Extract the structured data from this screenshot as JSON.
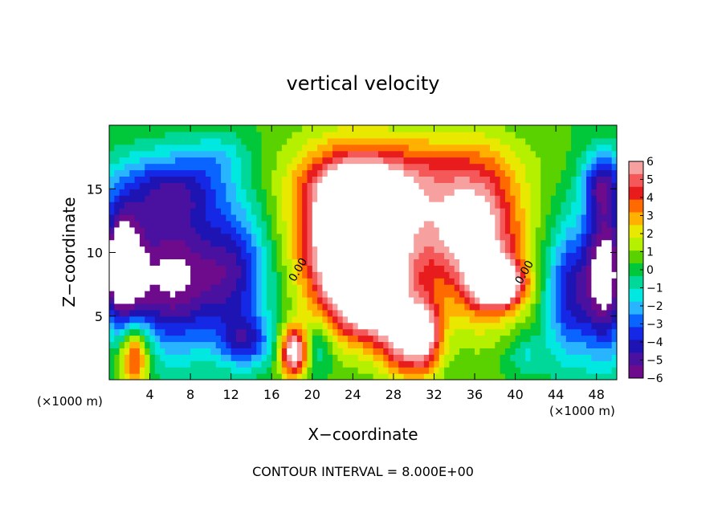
{
  "chart_data": {
    "type": "heatmap",
    "title": "vertical velocity",
    "xlabel": "X−coordinate",
    "ylabel": "Z−coordinate",
    "x_unit_left": "(×1000 m)",
    "x_unit_right": "(×1000 m)",
    "footer": "CONTOUR INTERVAL = 8.000E+00",
    "xlim": [
      0,
      50
    ],
    "ylim": [
      0,
      20
    ],
    "x_ticks": [
      4,
      8,
      12,
      16,
      20,
      24,
      28,
      32,
      36,
      40,
      44,
      48
    ],
    "y_ticks": [
      5,
      10,
      15
    ],
    "contour_labels": [
      {
        "text": "0.00",
        "x": 18.9,
        "y": 8.5
      },
      {
        "text": "0.00",
        "x": 41.2,
        "y": 8.3
      }
    ],
    "colorbar": {
      "ticks": [
        6,
        5,
        4,
        3,
        2,
        1,
        0,
        -1,
        -2,
        -3,
        -4,
        -5,
        -6
      ],
      "tick_labels": [
        "6",
        "5",
        "4",
        "3",
        "2",
        "1",
        "0",
        "−1",
        "−2",
        "−3",
        "−4",
        "−5",
        "−6"
      ],
      "colors": [
        "#f7a0a0",
        "#f45858",
        "#e81c1c",
        "#ff6a00",
        "#ffb000",
        "#e8e800",
        "#b4f000",
        "#5ad200",
        "#00c83a",
        "#00d89a",
        "#00e8e0",
        "#28b4ff",
        "#0a64ff",
        "#1428e6",
        "#1e14b4",
        "#4a10a0",
        "#6e0a8c"
      ],
      "range": [
        -6,
        6
      ]
    },
    "features": [
      {
        "x": 23.5,
        "y": 10.5,
        "a": 4.5,
        "b": 6.0,
        "v": 7
      },
      {
        "x": 26.0,
        "y": 7.0,
        "a": 3.5,
        "b": 3.5,
        "v": 7
      },
      {
        "x": 29.0,
        "y": 12.5,
        "a": 9.0,
        "b": 4.5,
        "v": 4.5
      },
      {
        "x": 36.5,
        "y": 10.5,
        "a": 4.0,
        "b": 6.0,
        "v": 5.0
      },
      {
        "x": 38.5,
        "y": 7.5,
        "a": 2.5,
        "b": 1.8,
        "v": 6.5
      },
      {
        "x": 31.0,
        "y": 3.5,
        "a": 1.8,
        "b": 3.0,
        "v": 6.0
      },
      {
        "x": 28.5,
        "y": 3.0,
        "a": 2.0,
        "b": 2.8,
        "v": 4.0
      },
      {
        "x": 18.2,
        "y": 2.2,
        "a": 1.4,
        "b": 2.0,
        "v": 6.5
      },
      {
        "x": 2.5,
        "y": 2.0,
        "a": 1.5,
        "b": 2.5,
        "v": 5.0
      },
      {
        "x": 29.0,
        "y": 17.0,
        "a": 11.0,
        "b": 3.0,
        "v": 2.0
      },
      {
        "x": 25.0,
        "y": 15.0,
        "a": 5.0,
        "b": 2.0,
        "v": 2.5
      },
      {
        "x": 6.0,
        "y": 8.0,
        "a": 5.0,
        "b": 5.5,
        "v": -6.5
      },
      {
        "x": 1.2,
        "y": 9.0,
        "a": 2.0,
        "b": 4.5,
        "v": -7.0
      },
      {
        "x": 6.0,
        "y": 15.0,
        "a": 5.5,
        "b": 3.0,
        "v": -4.0
      },
      {
        "x": 12.5,
        "y": 8.5,
        "a": 3.5,
        "b": 5.0,
        "v": -4.0
      },
      {
        "x": 13.5,
        "y": 3.0,
        "a": 2.5,
        "b": 2.0,
        "v": -3.5
      },
      {
        "x": 45.5,
        "y": 7.0,
        "a": 2.5,
        "b": 5.5,
        "v": -4.5
      },
      {
        "x": 49.0,
        "y": 8.5,
        "a": 2.0,
        "b": 6.0,
        "v": -7.0
      },
      {
        "x": 48.5,
        "y": 15.5,
        "a": 2.0,
        "b": 2.5,
        "v": -4.0
      },
      {
        "x": 20.5,
        "y": 2.5,
        "a": 1.5,
        "b": 2.0,
        "v": -2.0
      },
      {
        "x": 41.0,
        "y": 2.0,
        "a": 2.0,
        "b": 1.5,
        "v": -1.5
      },
      {
        "x": 11.0,
        "y": 17.5,
        "a": 3.0,
        "b": 2.0,
        "v": -1.5
      }
    ]
  }
}
